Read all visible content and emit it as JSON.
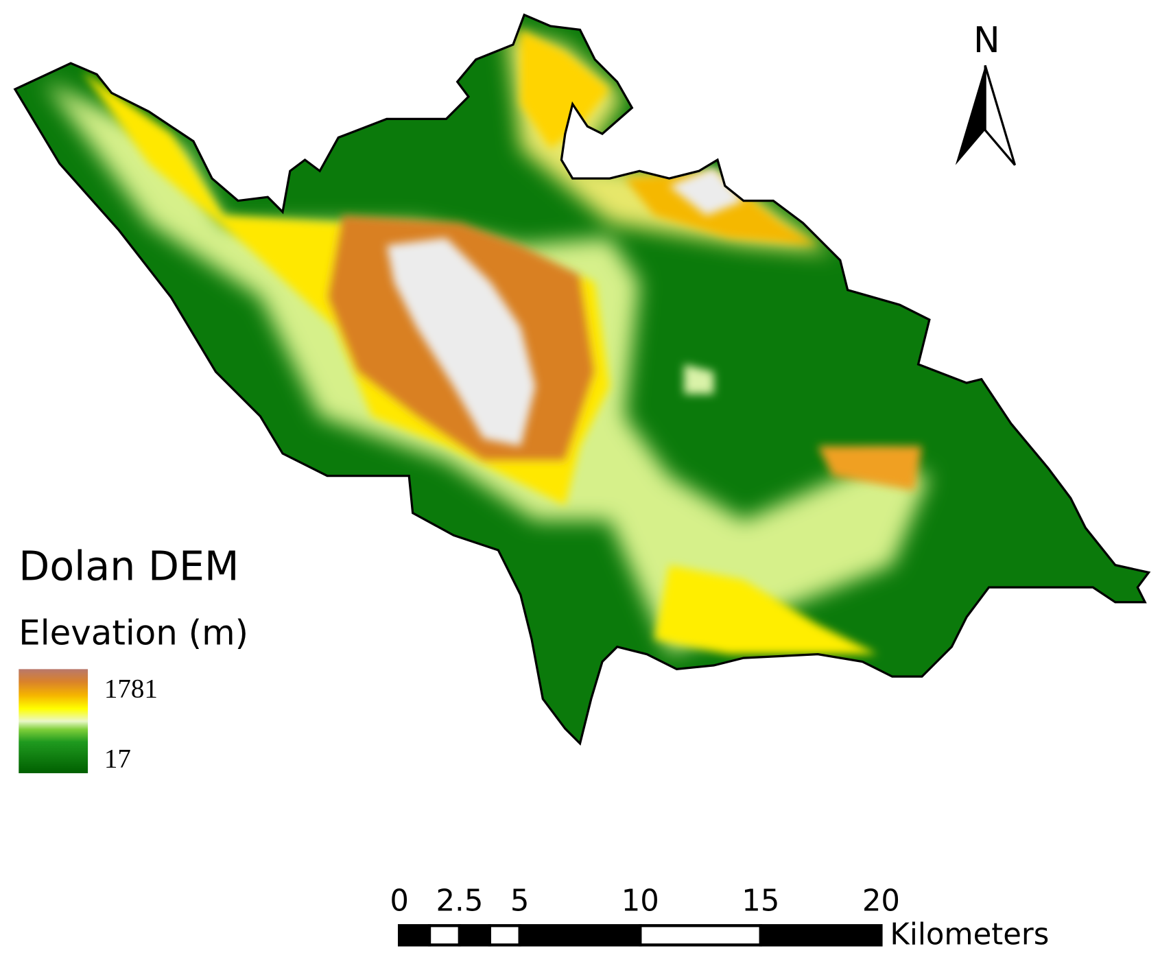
{
  "title": "Dolan DEM",
  "legend": {
    "title": "Elevation (m)",
    "max": 1781,
    "min": 17
  },
  "north_arrow": {
    "label": "N"
  },
  "scale_bar": {
    "ticks": [
      0,
      2.5,
      5,
      10,
      15,
      20
    ],
    "unit": "Kilometers"
  }
}
